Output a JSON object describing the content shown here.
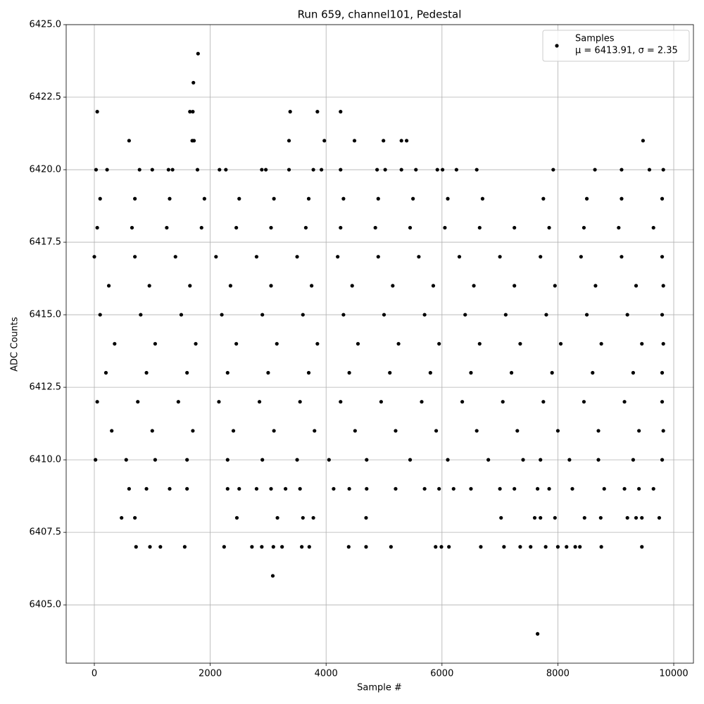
{
  "chart_data": {
    "type": "scatter",
    "title": "Run 659, channel101, Pedestal",
    "xlabel": "Sample #",
    "ylabel": "ADC Counts",
    "xlim": [
      -486,
      10340
    ],
    "ylim": [
      6402.99,
      6425
    ],
    "xticks": [
      0,
      2000,
      4000,
      6000,
      8000,
      10000
    ],
    "yticks": [
      {
        "value": 6405,
        "label": "6405.0"
      },
      {
        "value": 6407.5,
        "label": "6407.5"
      },
      {
        "value": 6410,
        "label": "6410.0"
      },
      {
        "value": 6412.5,
        "label": "6412.5"
      },
      {
        "value": 6415,
        "label": "6415.0"
      },
      {
        "value": 6417.5,
        "label": "6417.5"
      },
      {
        "value": 6420,
        "label": "6420.0"
      },
      {
        "value": 6422.5,
        "label": "6422.5"
      },
      {
        "value": 6425,
        "label": "6425.0"
      }
    ],
    "grid": true,
    "legend": "upper right",
    "legend_note": "μ = 6413.91, σ = 2.35",
    "series": [
      {
        "name": "Samples",
        "color": "#000000",
        "x": [
          1790,
          1710,
          50,
          1650,
          1700,
          3380,
          3850,
          4250,
          600,
          1690,
          1720,
          3360,
          3970,
          4490,
          4990,
          5300,
          5390,
          9470,
          30,
          220,
          780,
          1000,
          1280,
          1350,
          1780,
          2160,
          2270,
          2890,
          2960,
          3360,
          3780,
          3920,
          4250,
          4880,
          5020,
          5300,
          5550,
          5920,
          6010,
          6250,
          6600,
          7920,
          8640,
          9100,
          9580,
          9820,
          100,
          700,
          1300,
          1900,
          2500,
          3100,
          3700,
          4300,
          4900,
          5500,
          6100,
          6700,
          7750,
          8500,
          9100,
          9800,
          50,
          650,
          1250,
          1850,
          2450,
          3050,
          3650,
          4250,
          4850,
          5450,
          6050,
          6650,
          7250,
          7850,
          8450,
          9050,
          9650,
          0,
          700,
          1400,
          2100,
          2800,
          3500,
          4200,
          4900,
          5600,
          6300,
          7000,
          7700,
          8400,
          9100,
          9800,
          250,
          950,
          1650,
          2350,
          3050,
          3750,
          4450,
          5150,
          5850,
          6550,
          7250,
          7950,
          8650,
          9350,
          9820,
          100,
          800,
          1500,
          2200,
          2900,
          3600,
          4300,
          5000,
          5700,
          6400,
          7100,
          7800,
          8500,
          9200,
          9800,
          350,
          1050,
          1750,
          2450,
          3150,
          3850,
          4550,
          5250,
          5950,
          6650,
          7350,
          8050,
          8750,
          9450,
          9820,
          200,
          900,
          1600,
          2300,
          3000,
          3700,
          4400,
          5100,
          5800,
          6500,
          7200,
          7900,
          8600,
          9300,
          9800,
          50,
          750,
          1450,
          2150,
          2850,
          3550,
          4250,
          4950,
          5650,
          6350,
          7050,
          7750,
          8450,
          9150,
          9800,
          300,
          1000,
          1700,
          2400,
          3100,
          3800,
          4500,
          5200,
          5900,
          6600,
          7300,
          8000,
          8700,
          9400,
          9820,
          20,
          550,
          1050,
          1600,
          2300,
          2900,
          3500,
          4050,
          4700,
          5450,
          6100,
          6800,
          7400,
          7700,
          8200,
          8700,
          9300,
          9800,
          600,
          900,
          1300,
          1600,
          2300,
          2500,
          2800,
          3050,
          3300,
          3550,
          4130,
          4400,
          4700,
          5200,
          5700,
          5950,
          6200,
          6500,
          7000,
          7250,
          7650,
          7850,
          8250,
          8800,
          9150,
          9400,
          9650,
          470,
          700,
          2460,
          3160,
          3600,
          3780,
          4690,
          7020,
          7600,
          7700,
          7950,
          8460,
          8740,
          9200,
          9350,
          9450,
          9750,
          720,
          960,
          1140,
          1560,
          2240,
          2720,
          2890,
          3090,
          3240,
          3580,
          3710,
          4390,
          4690,
          5120,
          5890,
          5990,
          6120,
          6670,
          7070,
          7350,
          7530,
          7790,
          8000,
          8150,
          8300,
          8380,
          8750,
          9450,
          3080,
          7650
        ],
        "values": [
          6424,
          6423,
          6422,
          6422,
          6422,
          6422,
          6422,
          6422,
          6421,
          6421,
          6421,
          6421,
          6421,
          6421,
          6421,
          6421,
          6421,
          6421,
          6420,
          6420,
          6420,
          6420,
          6420,
          6420,
          6420,
          6420,
          6420,
          6420,
          6420,
          6420,
          6420,
          6420,
          6420,
          6420,
          6420,
          6420,
          6420,
          6420,
          6420,
          6420,
          6420,
          6420,
          6420,
          6420,
          6420,
          6420,
          6419,
          6419,
          6419,
          6419,
          6419,
          6419,
          6419,
          6419,
          6419,
          6419,
          6419,
          6419,
          6419,
          6419,
          6419,
          6419,
          6418,
          6418,
          6418,
          6418,
          6418,
          6418,
          6418,
          6418,
          6418,
          6418,
          6418,
          6418,
          6418,
          6418,
          6418,
          6418,
          6418,
          6417,
          6417,
          6417,
          6417,
          6417,
          6417,
          6417,
          6417,
          6417,
          6417,
          6417,
          6417,
          6417,
          6417,
          6417,
          6416,
          6416,
          6416,
          6416,
          6416,
          6416,
          6416,
          6416,
          6416,
          6416,
          6416,
          6416,
          6416,
          6416,
          6416,
          6415,
          6415,
          6415,
          6415,
          6415,
          6415,
          6415,
          6415,
          6415,
          6415,
          6415,
          6415,
          6415,
          6415,
          6415,
          6414,
          6414,
          6414,
          6414,
          6414,
          6414,
          6414,
          6414,
          6414,
          6414,
          6414,
          6414,
          6414,
          6414,
          6414,
          6413,
          6413,
          6413,
          6413,
          6413,
          6413,
          6413,
          6413,
          6413,
          6413,
          6413,
          6413,
          6413,
          6413,
          6413,
          6412,
          6412,
          6412,
          6412,
          6412,
          6412,
          6412,
          6412,
          6412,
          6412,
          6412,
          6412,
          6412,
          6412,
          6412,
          6411,
          6411,
          6411,
          6411,
          6411,
          6411,
          6411,
          6411,
          6411,
          6411,
          6411,
          6411,
          6411,
          6411,
          6411,
          6410,
          6410,
          6410,
          6410,
          6410,
          6410,
          6410,
          6410,
          6410,
          6410,
          6410,
          6410,
          6410,
          6410,
          6410,
          6410,
          6410,
          6410,
          6409,
          6409,
          6409,
          6409,
          6409,
          6409,
          6409,
          6409,
          6409,
          6409,
          6409,
          6409,
          6409,
          6409,
          6409,
          6409,
          6409,
          6409,
          6409,
          6409,
          6409,
          6409,
          6409,
          6409,
          6409,
          6409,
          6409,
          6408,
          6408,
          6408,
          6408,
          6408,
          6408,
          6408,
          6408,
          6408,
          6408,
          6408,
          6408,
          6408,
          6408,
          6408,
          6408,
          6408,
          6407,
          6407,
          6407,
          6407,
          6407,
          6407,
          6407,
          6407,
          6407,
          6407,
          6407,
          6407,
          6407,
          6407,
          6407,
          6407,
          6407,
          6407,
          6407,
          6407,
          6407,
          6407,
          6407,
          6407,
          6407,
          6407,
          6407,
          6407,
          6406,
          6404
        ]
      }
    ]
  }
}
